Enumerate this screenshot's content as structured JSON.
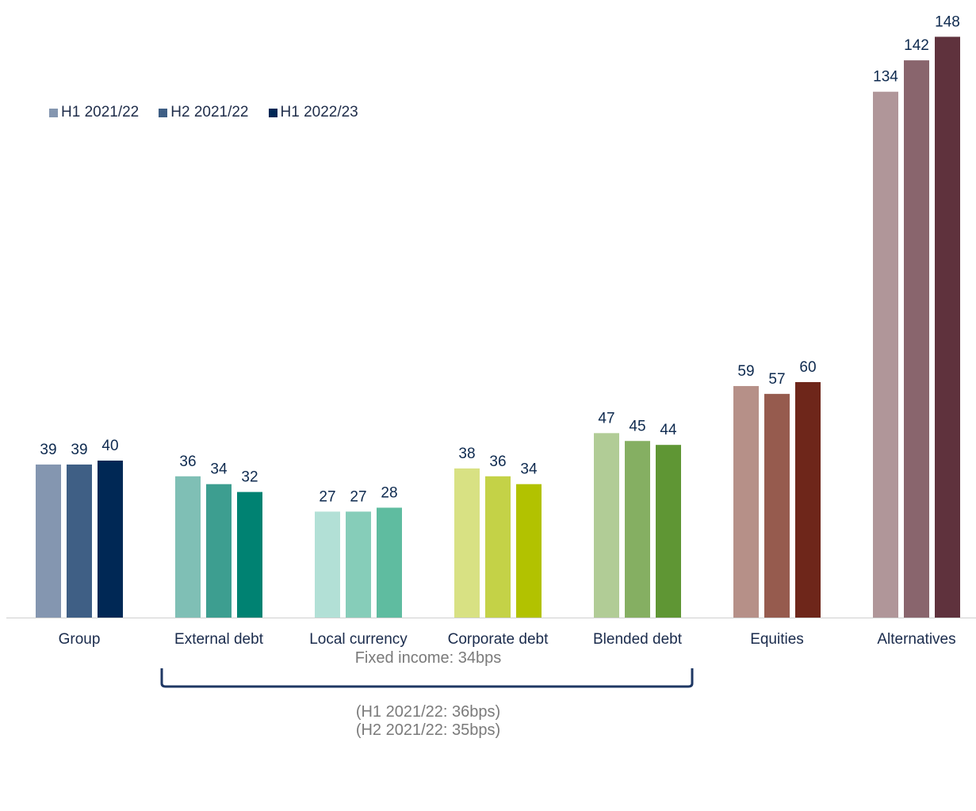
{
  "chart_data": {
    "type": "bar",
    "categories": [
      "Group",
      "External debt",
      "Local currency",
      "Corporate debt",
      "Blended debt",
      "Equities",
      "Alternatives"
    ],
    "series": [
      {
        "name": "H1 2021/22",
        "values": [
          39,
          36,
          27,
          38,
          47,
          59,
          134
        ]
      },
      {
        "name": "H2 2021/22",
        "values": [
          39,
          34,
          27,
          36,
          45,
          57,
          142
        ]
      },
      {
        "name": "H1 2022/23",
        "values": [
          40,
          32,
          28,
          34,
          44,
          60,
          148
        ]
      }
    ],
    "ylim": [
      0,
      150
    ],
    "grid": false,
    "legend_position": "top-left",
    "category_colors": [
      [
        "#8496b0",
        "#3f5f85",
        "#002855"
      ],
      [
        "#7fbfb5",
        "#3d9e90",
        "#008272"
      ],
      [
        "#b2e0d6",
        "#86cdb9",
        "#5fbca0"
      ],
      [
        "#d8e183",
        "#c4d247",
        "#b2c200"
      ],
      [
        "#b1cc96",
        "#85af62",
        "#5f9634"
      ],
      [
        "#b69088",
        "#965b4e",
        "#6e261a"
      ],
      [
        "#b09699",
        "#89656d",
        "#5f323d"
      ]
    ],
    "legend_colors": [
      "#8496b0",
      "#3f5f85",
      "#002855"
    ],
    "label_color": "#0e2a4f"
  },
  "annotations": {
    "bracket_color": "#1f3864",
    "fixed_income": "Fixed income: 34bps",
    "prev_h1": "(H1 2021/22: 36bps)",
    "prev_h2": "(H2 2021/22: 35bps)"
  }
}
